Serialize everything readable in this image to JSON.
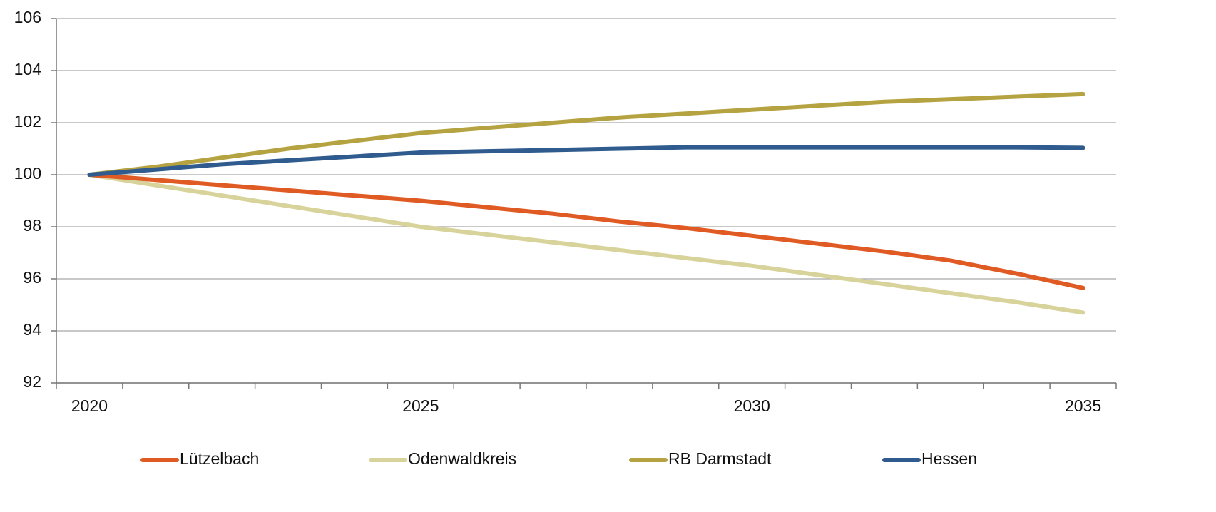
{
  "chart_data": {
    "type": "line",
    "categories": [
      "2020",
      null,
      null,
      null,
      null,
      "2025",
      null,
      null,
      null,
      null,
      "2030",
      null,
      null,
      null,
      null,
      "2035"
    ],
    "series": [
      {
        "name": "Lützelbach",
        "color": "#e05a24",
        "values": [
          100,
          99.8,
          99.6,
          99.4,
          99.2,
          99.0,
          98.75,
          98.5,
          98.2,
          97.95,
          97.65,
          97.35,
          97.05,
          96.7,
          96.2,
          95.65
        ]
      },
      {
        "name": "Odenwaldkreis",
        "color": "#d8d39a",
        "values": [
          100,
          99.6,
          99.2,
          98.8,
          98.4,
          98.0,
          97.7,
          97.4,
          97.1,
          96.8,
          96.5,
          96.15,
          95.8,
          95.45,
          95.1,
          94.7
        ]
      },
      {
        "name": "RB Darmstadt",
        "color": "#b5a342",
        "values": [
          100,
          100.3,
          100.65,
          101.0,
          101.3,
          101.6,
          101.8,
          102.0,
          102.2,
          102.35,
          102.5,
          102.65,
          102.8,
          102.9,
          103.0,
          103.1
        ]
      },
      {
        "name": "Hessen",
        "color": "#2f5b8e",
        "values": [
          100,
          100.2,
          100.4,
          100.55,
          100.7,
          100.85,
          100.9,
          100.95,
          101.0,
          101.05,
          101.05,
          101.05,
          101.05,
          101.05,
          101.05,
          101.03
        ]
      }
    ],
    "ylim": [
      92,
      106
    ],
    "yticks": [
      92,
      94,
      96,
      98,
      100,
      102,
      104,
      106
    ],
    "grid": true,
    "legend": "bottom"
  }
}
